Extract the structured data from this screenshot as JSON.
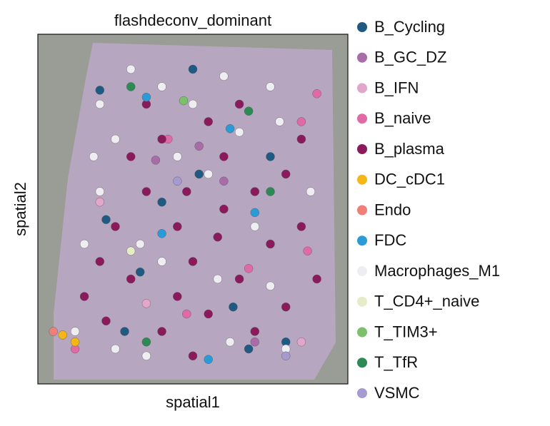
{
  "chart_data": {
    "type": "scatter",
    "title": "flashdeconv_dominant",
    "x_label": "spatial1",
    "y_label": "spatial2",
    "xlim": [
      0,
      100
    ],
    "ylim": [
      0,
      100
    ],
    "y_inverted": true,
    "grid": false,
    "legend": "outside right",
    "series": [
      {
        "name": "B_Cycling",
        "color": "#1f5a82",
        "x": [
          20,
          50,
          52,
          22,
          40,
          33,
          28,
          68,
          80,
          63,
          75
        ],
        "y": [
          16,
          10,
          40,
          53,
          48,
          68,
          85,
          90,
          88,
          78,
          35
        ]
      },
      {
        "name": "B_GC_DZ",
        "color": "#a86ca8",
        "x": [
          52,
          38,
          60,
          70
        ],
        "y": [
          32,
          36,
          42,
          88
        ]
      },
      {
        "name": "B_IFN",
        "color": "#e3a6cb",
        "x": [
          20,
          35,
          85
        ],
        "y": [
          48,
          77,
          88
        ]
      },
      {
        "name": "B_naive",
        "color": "#e06aa6",
        "x": [
          90,
          85,
          48,
          12,
          68,
          42,
          87
        ],
        "y": [
          17,
          25,
          80,
          90,
          67,
          30,
          62
        ]
      },
      {
        "name": "B_plasma",
        "color": "#8b1a5c",
        "x": [
          40,
          55,
          35,
          25,
          45,
          60,
          70,
          80,
          20,
          30,
          50,
          65,
          75,
          85,
          55,
          70,
          40,
          15,
          90,
          60,
          30,
          48,
          85,
          35,
          65,
          22,
          50,
          80,
          45,
          58
        ],
        "y": [
          30,
          25,
          45,
          55,
          55,
          50,
          45,
          40,
          65,
          70,
          65,
          70,
          60,
          55,
          80,
          85,
          85,
          75,
          70,
          35,
          35,
          45,
          30,
          20,
          20,
          82,
          92,
          78,
          75,
          58
        ]
      },
      {
        "name": "DC_cDC1",
        "color": "#f5b718",
        "x": [
          8,
          12
        ],
        "y": [
          86,
          88
        ]
      },
      {
        "name": "Endo",
        "color": "#f07f79",
        "x": [
          5
        ],
        "y": [
          85
        ]
      },
      {
        "name": "FDC",
        "color": "#2b9bd8",
        "x": [
          35,
          62,
          70,
          40,
          55
        ],
        "y": [
          18,
          27,
          51,
          57,
          93
        ]
      },
      {
        "name": "Macrophages_M1",
        "color": "#eeeef2",
        "x": [
          20,
          25,
          40,
          60,
          75,
          30,
          55,
          65,
          78,
          20,
          15,
          40,
          58,
          25,
          35,
          62,
          75,
          88,
          50,
          18,
          70,
          33,
          45,
          80,
          12
        ],
        "y": [
          20,
          30,
          15,
          12,
          15,
          10,
          40,
          28,
          25,
          45,
          60,
          65,
          70,
          90,
          92,
          88,
          72,
          45,
          20,
          35,
          55,
          60,
          35,
          90,
          85
        ]
      },
      {
        "name": "T_CD4+_naive",
        "color": "#e6ebc8",
        "x": [
          30
        ],
        "y": [
          62
        ]
      },
      {
        "name": "T_TIM3+",
        "color": "#7cc06b",
        "x": [
          47
        ],
        "y": [
          19
        ]
      },
      {
        "name": "T_TfR",
        "color": "#2e8a55",
        "x": [
          30,
          68,
          75,
          35
        ],
        "y": [
          15,
          22,
          45,
          88
        ]
      },
      {
        "name": "VSMC",
        "color": "#a59bd1",
        "x": [
          80,
          45
        ],
        "y": [
          92,
          42
        ]
      }
    ]
  }
}
